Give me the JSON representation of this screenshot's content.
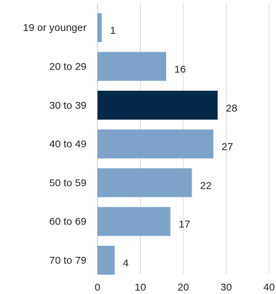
{
  "chart_data": {
    "type": "bar",
    "orientation": "horizontal",
    "categories": [
      "19 or younger",
      "20 to 29",
      "30 to 39",
      "40 to 49",
      "50 to 59",
      "60 to 69",
      "70 to 79"
    ],
    "values": [
      1,
      16,
      28,
      27,
      22,
      17,
      4
    ],
    "highlight_category": "30 to 39",
    "xlim": [
      0,
      40
    ],
    "xticks": [
      0,
      10,
      20,
      30,
      40
    ],
    "grid": "vertical",
    "title": "",
    "xlabel": "",
    "ylabel": "",
    "colors": {
      "bar": "#7ea3c8",
      "highlight": "#04284a",
      "grid": "#d9d9d9",
      "text": "#222222"
    }
  }
}
